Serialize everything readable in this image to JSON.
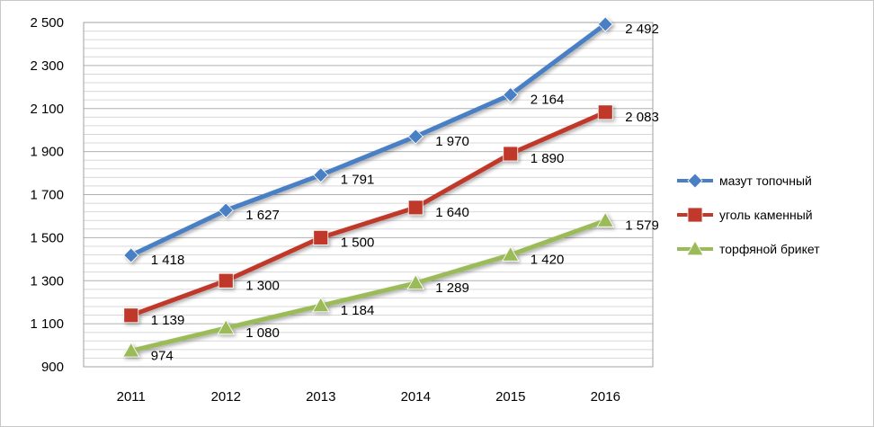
{
  "chart_data": {
    "type": "line",
    "title": "",
    "xlabel": "",
    "ylabel": "",
    "x": [
      "2011",
      "2012",
      "2013",
      "2014",
      "2015",
      "2016"
    ],
    "ylim": [
      900,
      2500
    ],
    "yticks": [
      900,
      1100,
      1300,
      1500,
      1700,
      1900,
      2100,
      2300,
      2500
    ],
    "ytick_labels": [
      "900",
      "1 100",
      "1 300",
      "1 500",
      "1 700",
      "1 900",
      "2 100",
      "2 300",
      "2 500"
    ],
    "grid": true,
    "legend_position": "right",
    "series": [
      {
        "name": "мазут топочный",
        "color": "#4a7fc4",
        "marker": "diamond",
        "values": [
          1418,
          1627,
          1791,
          1970,
          2164,
          2492
        ],
        "labels": [
          "1 418",
          "1 627",
          "1 791",
          "1 970",
          "2 164",
          "2 492"
        ]
      },
      {
        "name": "уголь каменный",
        "color": "#c0392b",
        "marker": "square",
        "values": [
          1139,
          1300,
          1500,
          1640,
          1890,
          2083
        ],
        "labels": [
          "1 139",
          "1 300",
          "1 500",
          "1 640",
          "1 890",
          "2 083"
        ]
      },
      {
        "name": "торфяной брикет",
        "color": "#9bbb59",
        "marker": "triangle",
        "values": [
          974,
          1080,
          1184,
          1289,
          1420,
          1579
        ],
        "labels": [
          "974",
          "1 080",
          "1 184",
          "1 289",
          "1 420",
          "1 579"
        ]
      }
    ]
  }
}
